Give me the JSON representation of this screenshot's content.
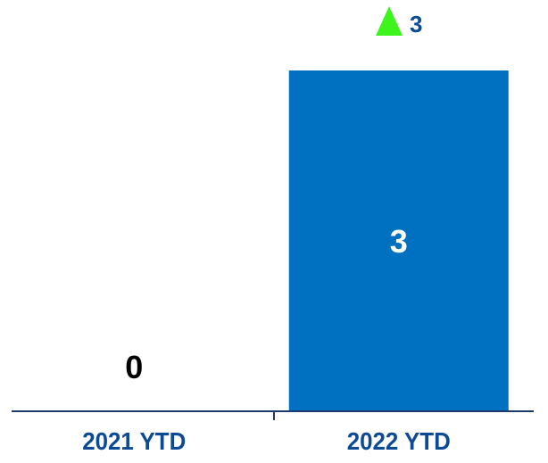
{
  "chart_data": {
    "type": "bar",
    "categories": [
      "2021 YTD",
      "2022 YTD"
    ],
    "values": [
      0,
      3
    ],
    "data_labels": [
      "0",
      "3"
    ],
    "ylim": [
      0,
      3
    ],
    "grid": false,
    "title": "",
    "xlabel": "",
    "ylabel": "",
    "change_indicator": {
      "icon": "triangle-up-icon",
      "value": "3",
      "color": "#3df51c"
    },
    "colors": {
      "bar": "#0070c0",
      "axis": "#1f3a6e",
      "category_label": "#0d4a96",
      "label_outside": "#000000",
      "label_inside": "#ffffff"
    }
  }
}
